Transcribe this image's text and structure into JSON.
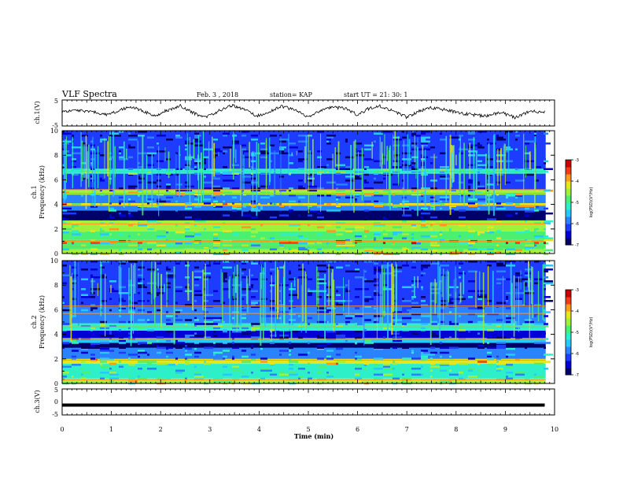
{
  "header": {
    "title": "VLF Spectra",
    "date": "Feb. 3  , 2018",
    "station": "station= KAP",
    "start": "start  UT  =   21: 30: 1"
  },
  "chart_data": [
    {
      "type": "line",
      "panel": "ch1-waveform",
      "ylabel": "ch.1(V)",
      "xlim": [
        0,
        10
      ],
      "ylim": [
        -5,
        5
      ],
      "yticklabels": [
        "5",
        "-5"
      ],
      "x": [
        0.0,
        0.3,
        0.6,
        0.9,
        1.1,
        1.35,
        1.6,
        1.9,
        2.1,
        2.4,
        2.65,
        2.9,
        3.2,
        3.45,
        3.7,
        3.95,
        4.2,
        4.45,
        4.75,
        5.0,
        5.25,
        5.5,
        5.75,
        6.0,
        6.2,
        6.45,
        6.7,
        7.0,
        7.25,
        7.5,
        7.8,
        8.05,
        8.3,
        8.6,
        8.9,
        9.2,
        9.5,
        9.8
      ],
      "y": [
        0.5,
        1.0,
        0.6,
        -0.8,
        0.4,
        2.4,
        1.2,
        -1.5,
        0.8,
        2.8,
        0.2,
        -1.8,
        1.0,
        2.9,
        1.4,
        -1.2,
        0.5,
        2.6,
        1.0,
        -1.7,
        0.9,
        2.2,
        1.8,
        -0.8,
        1.5,
        2.7,
        0.9,
        -1.6,
        0.7,
        2.0,
        1.2,
        0.0,
        -0.6,
        -1.2,
        0.3,
        -1.8,
        0.6,
        0.4
      ],
      "series": [
        {
          "name": "",
          "color": "#000000"
        }
      ]
    },
    {
      "type": "heatmap",
      "panel": "ch1-spectrogram",
      "ylabel": "ch.1\nFrequency (kHz)",
      "ylabel_lines": [
        "ch.1",
        "Frequency  (kHz)"
      ],
      "xlim": [
        0,
        10
      ],
      "ylim": [
        0,
        10
      ],
      "yticklabels": [
        "0",
        "2",
        "4",
        "6",
        "8",
        "10"
      ],
      "colorbar": {
        "label": "log(PSD)(V²/Hz)",
        "range": [
          -7,
          -3
        ],
        "ticklabels": [
          "-3",
          "-4",
          "-5",
          "-6",
          "-7"
        ]
      },
      "bands_khz": [
        {
          "f0": 0.0,
          "f1": 0.35,
          "level": -4.5
        },
        {
          "f0": 0.35,
          "f1": 0.9,
          "level": -5.0
        },
        {
          "f0": 0.9,
          "f1": 1.1,
          "level": -3.8
        },
        {
          "f0": 1.1,
          "f1": 1.8,
          "level": -5.0
        },
        {
          "f0": 1.8,
          "f1": 2.7,
          "level": -4.6
        },
        {
          "f0": 2.7,
          "f1": 3.5,
          "level": -6.9
        },
        {
          "f0": 3.5,
          "f1": 3.9,
          "level": -5.8
        },
        {
          "f0": 3.9,
          "f1": 4.1,
          "level": -4.2
        },
        {
          "f0": 4.1,
          "f1": 4.8,
          "level": -6.0
        },
        {
          "f0": 4.8,
          "f1": 5.2,
          "level": -4.5
        },
        {
          "f0": 5.2,
          "f1": 6.5,
          "level": -6.3
        },
        {
          "f0": 6.5,
          "f1": 6.9,
          "level": -5.2
        },
        {
          "f0": 6.9,
          "f1": 10.0,
          "level": -6.2
        }
      ],
      "lines_khz": [
        0.55,
        1.0,
        2.4,
        3.9,
        4.9,
        5.2,
        6.7
      ]
    },
    {
      "type": "heatmap",
      "panel": "ch2-spectrogram",
      "ylabel": "ch.2\nFrequency (kHz)",
      "ylabel_lines": [
        "ch.2",
        "Frequency  (kHz)"
      ],
      "xlim": [
        0,
        10
      ],
      "ylim": [
        0,
        10
      ],
      "yticklabels": [
        "0",
        "2",
        "4",
        "6",
        "8",
        "10"
      ],
      "colorbar": {
        "label": "log(PSD)(V²/Hz)",
        "range": [
          -7,
          -3
        ],
        "ticklabels": [
          "-3",
          "-4",
          "-5",
          "-6",
          "-7"
        ]
      },
      "bands_khz": [
        {
          "f0": 0.0,
          "f1": 0.4,
          "level": -4.4
        },
        {
          "f0": 0.4,
          "f1": 1.6,
          "level": -5.2
        },
        {
          "f0": 1.6,
          "f1": 2.0,
          "level": -4.3
        },
        {
          "f0": 2.0,
          "f1": 2.9,
          "level": -5.8
        },
        {
          "f0": 2.9,
          "f1": 3.3,
          "level": -6.8
        },
        {
          "f0": 3.3,
          "f1": 3.7,
          "level": -5.6
        },
        {
          "f0": 3.7,
          "f1": 4.3,
          "level": -6.5
        },
        {
          "f0": 4.3,
          "f1": 4.9,
          "level": -5.2
        },
        {
          "f0": 4.9,
          "f1": 6.2,
          "level": -6.0
        },
        {
          "f0": 6.2,
          "f1": 10.0,
          "level": -6.3
        }
      ],
      "lines_khz": [
        0.3,
        1.9,
        3.6,
        4.6,
        5.7,
        6.3
      ]
    },
    {
      "type": "line",
      "panel": "ch3-waveform",
      "ylabel": "ch.3(V)",
      "xlim": [
        0,
        10
      ],
      "ylim": [
        -5,
        5
      ],
      "yticklabels": [
        "5",
        "0",
        "-5"
      ],
      "x": [
        0.0,
        9.8
      ],
      "y": [
        -1.2,
        -1.2
      ],
      "series": [
        {
          "name": "",
          "color": "#000000"
        }
      ]
    }
  ],
  "xaxis": {
    "label": "Time  (min)",
    "ticklabels": [
      "0",
      "1",
      "2",
      "3",
      "4",
      "5",
      "6",
      "7",
      "8",
      "9",
      "10"
    ],
    "xlim": [
      0,
      10
    ]
  },
  "colormap": [
    "#00006a",
    "#0000d4",
    "#1e3cff",
    "#2a82ff",
    "#28c8ff",
    "#2ef0c8",
    "#4cf070",
    "#a0f03c",
    "#e6e61e",
    "#ff9a1e",
    "#f03c14",
    "#c80000"
  ]
}
